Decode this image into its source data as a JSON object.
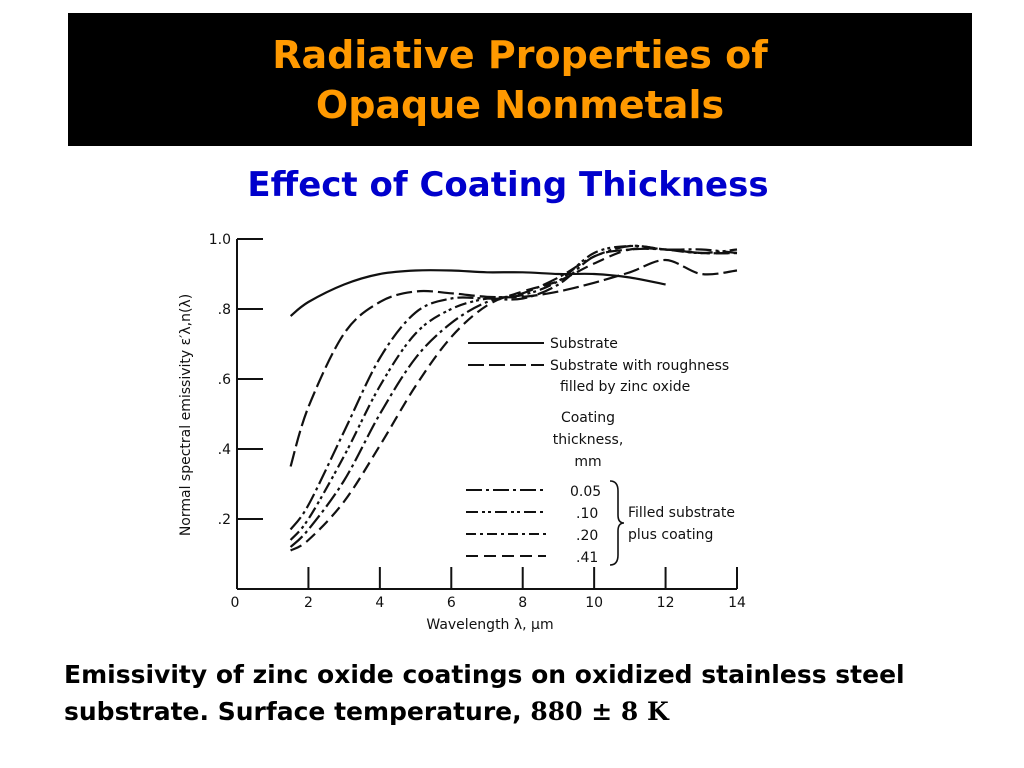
{
  "header": {
    "title_line1": "Radiative Properties of",
    "title_line2": "Opaque Nonmetals",
    "subtitle": "Effect of Coating Thickness"
  },
  "caption": {
    "text": "Emissivity of zinc oxide coatings on oxidized stainless steel substrate. Surface temperature, ",
    "temperature": "880 ± 8 K"
  },
  "colors": {
    "title_bg": "#000000",
    "title_text": "#ff9900",
    "subtitle_text": "#0000cc",
    "ink": "#111111"
  },
  "chart_data": {
    "type": "line",
    "xlabel": "Wavelength λ, μm",
    "ylabel": "Normal spectral emissivity ε′λ,n(λ)",
    "xlim": [
      0,
      14
    ],
    "ylim": [
      0,
      1.0
    ],
    "x_ticks": [
      "0",
      "2",
      "4",
      "6",
      "8",
      "10",
      "12",
      "14"
    ],
    "y_ticks": [
      {
        "value": 0.2,
        "label": ".2"
      },
      {
        "value": 0.4,
        "label": ".4"
      },
      {
        "value": 0.6,
        "label": ".6"
      },
      {
        "value": 0.8,
        "label": ".8"
      },
      {
        "value": 1.0,
        "label": "1.0"
      }
    ],
    "grid": false,
    "legend": {
      "substrate": "Substrate",
      "roughness_line1": "Substrate with roughness",
      "roughness_line2": "filled by zinc oxide",
      "coating_header": [
        "Coating",
        "thickness,",
        "mm"
      ],
      "bracket_label": [
        "Filled substrate",
        "plus coating"
      ]
    },
    "series": [
      {
        "name": "Substrate",
        "dash": "solid",
        "x": [
          1.5,
          2.0,
          3.0,
          4.0,
          5.0,
          6.0,
          7.0,
          8.0,
          9.0,
          10.0,
          11.0,
          12.0
        ],
        "y": [
          0.78,
          0.82,
          0.87,
          0.9,
          0.91,
          0.91,
          0.905,
          0.905,
          0.9,
          0.9,
          0.89,
          0.87
        ]
      },
      {
        "name": "Substrate with roughness filled by zinc oxide",
        "dash": "longdash",
        "x": [
          1.5,
          2.0,
          3.0,
          4.0,
          5.0,
          6.0,
          7.0,
          8.0,
          9.0,
          10.0,
          11.0,
          12.0,
          13.0,
          14.0
        ],
        "y": [
          0.35,
          0.52,
          0.73,
          0.82,
          0.85,
          0.845,
          0.835,
          0.835,
          0.85,
          0.875,
          0.905,
          0.94,
          0.9,
          0.91
        ]
      },
      {
        "name": "0.05",
        "dash": "dashdot",
        "x": [
          1.5,
          2.0,
          3.0,
          4.0,
          5.0,
          6.0,
          7.0,
          8.0,
          9.0,
          10.0,
          11.0,
          12.0,
          13.0,
          14.0
        ],
        "y": [
          0.17,
          0.24,
          0.45,
          0.66,
          0.79,
          0.83,
          0.83,
          0.83,
          0.87,
          0.95,
          0.97,
          0.97,
          0.96,
          0.96
        ]
      },
      {
        "name": ".10",
        "dash": "dashdotdot",
        "x": [
          1.5,
          2.0,
          3.0,
          4.0,
          5.0,
          6.0,
          7.0,
          8.0,
          9.0,
          10.0,
          11.0,
          12.0,
          13.0,
          14.0
        ],
        "y": [
          0.14,
          0.2,
          0.38,
          0.58,
          0.73,
          0.8,
          0.83,
          0.84,
          0.88,
          0.96,
          0.98,
          0.97,
          0.96,
          0.97
        ]
      },
      {
        "name": ".20",
        "dash": "dashdot",
        "x": [
          1.5,
          2.0,
          3.0,
          4.0,
          5.0,
          6.0,
          7.0,
          8.0,
          9.0,
          10.0,
          11.0,
          12.0,
          13.0,
          14.0
        ],
        "y": [
          0.12,
          0.17,
          0.31,
          0.5,
          0.66,
          0.76,
          0.82,
          0.845,
          0.89,
          0.95,
          0.98,
          0.97,
          0.97,
          0.96
        ]
      },
      {
        "name": ".41",
        "dash": "dashed",
        "x": [
          1.5,
          2.0,
          3.0,
          4.0,
          5.0,
          6.0,
          7.0,
          8.0,
          9.0,
          10.0,
          11.0,
          12.0,
          13.0,
          14.0
        ],
        "y": [
          0.11,
          0.14,
          0.25,
          0.41,
          0.58,
          0.72,
          0.81,
          0.85,
          0.88,
          0.93,
          0.97,
          0.97,
          0.96,
          0.96
        ]
      }
    ]
  }
}
